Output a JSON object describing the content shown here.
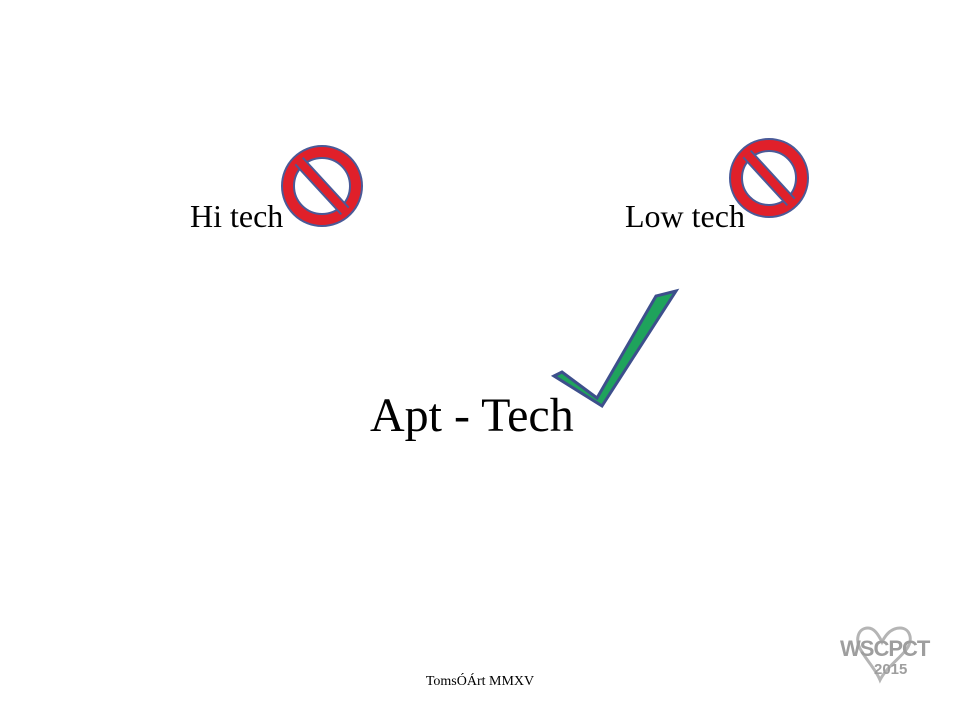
{
  "slide": {
    "hi_tech": "Hi tech",
    "low_tech": "Low tech",
    "apt_tech": "Apt - Tech",
    "footer": "TomsÓÁrt  MMXV"
  },
  "logo": {
    "name": "WSCPCT",
    "year": "2015"
  },
  "icons": {
    "rejected_marker": "prohibition-sign-icon",
    "accepted_marker": "checkmark-icon"
  },
  "colors": {
    "prohibition_fill": "#e0202a",
    "prohibition_outline": "#4a5a98",
    "check_fill": "#1fa35c",
    "check_outline": "#3d4f8c",
    "logo_gray": "#9e9e9e"
  }
}
